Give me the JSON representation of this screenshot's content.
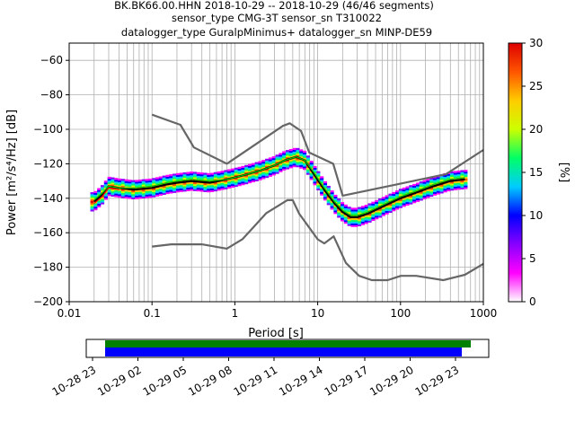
{
  "chart_data": {
    "type": "heatmap",
    "title_lines": [
      "BK.BK66.00.HHN   2018-10-29 -- 2018-10-29  (46/46 segments)",
      "sensor_type CMG-3T sensor_sn T310022",
      "datalogger_type GuralpMinimus+ datalogger_sn MINP-DE59"
    ],
    "xlabel": "Period [s]",
    "ylabel": "Power [m²/s⁴/Hz] [dB]",
    "xscale": "log",
    "xlim": [
      0.01,
      1000
    ],
    "ylim": [
      -200,
      -50
    ],
    "grid": true,
    "x_ticks": [
      {
        "value": 0.01,
        "label": "0.01"
      },
      {
        "value": 0.1,
        "label": "0.1"
      },
      {
        "value": 1,
        "label": "1"
      },
      {
        "value": 10,
        "label": "10"
      },
      {
        "value": 100,
        "label": "100"
      },
      {
        "value": 1000,
        "label": "1000"
      }
    ],
    "y_ticks": [
      -60,
      -80,
      -100,
      -120,
      -140,
      -160,
      -180,
      -200
    ],
    "colorbar": {
      "label": "[%]",
      "range": [
        0,
        30
      ],
      "ticks": [
        0,
        5,
        10,
        15,
        20,
        25,
        30
      ],
      "colors": [
        "#ffffff",
        "#ff00ff",
        "#8800ff",
        "#0000ff",
        "#00ccff",
        "#00ff66",
        "#ccff00",
        "#ffcc00",
        "#ff5500",
        "#dd0000"
      ]
    },
    "series": [
      {
        "role": "new-high-noise-model",
        "color": "#666666",
        "x": [
          0.1,
          0.22,
          0.32,
          0.8,
          3.8,
          4.6,
          6.3,
          7.9,
          15.4,
          20,
          354.8,
          1000
        ],
        "y": [
          -91.5,
          -97.4,
          -110.5,
          -120,
          -98,
          -96.5,
          -101,
          -113.5,
          -120,
          -138.5,
          -126,
          -112
        ]
      },
      {
        "role": "new-low-noise-model",
        "color": "#666666",
        "x": [
          0.1,
          0.17,
          0.4,
          0.8,
          1.24,
          2.4,
          4.3,
          5,
          6,
          10,
          12,
          15.6,
          21.9,
          31.6,
          45,
          70,
          101,
          154,
          328,
          600,
          1000
        ],
        "y": [
          -168,
          -166.7,
          -166.7,
          -169.2,
          -163.7,
          -148.6,
          -141.1,
          -141.1,
          -149,
          -163.8,
          -166.2,
          -162.1,
          -177.5,
          -185,
          -187.5,
          -187.5,
          -185,
          -185,
          -187.5,
          -184.4,
          -178
        ]
      },
      {
        "role": "mode",
        "color": "#000000",
        "x": [
          0.02,
          0.025,
          0.03,
          0.04,
          0.06,
          0.1,
          0.15,
          0.2,
          0.3,
          0.5,
          0.8,
          1.2,
          2,
          3,
          4,
          5.5,
          7,
          9,
          12,
          16,
          20,
          25,
          30,
          40,
          60,
          100,
          150,
          250,
          400,
          600
        ],
        "y": [
          -142,
          -138,
          -133,
          -134,
          -135,
          -134,
          -132,
          -131,
          -130,
          -131,
          -129,
          -127,
          -124,
          -121,
          -118,
          -116,
          -118,
          -126,
          -135,
          -143,
          -148,
          -151,
          -151,
          -149,
          -145,
          -140,
          -137,
          -133,
          -130,
          -129
        ]
      },
      {
        "role": "mean",
        "color": "#00cc00",
        "x": [
          0.02,
          0.025,
          0.03,
          0.04,
          0.06,
          0.1,
          0.15,
          0.2,
          0.3,
          0.5,
          0.8,
          1.2,
          2,
          3,
          4,
          5.5,
          7,
          9,
          12,
          16,
          20,
          25,
          30,
          40,
          60,
          100,
          150,
          250,
          400,
          600
        ],
        "y": [
          -141,
          -137,
          -133,
          -134,
          -134,
          -133,
          -131,
          -130,
          -129,
          -130,
          -129,
          -127,
          -124,
          -121,
          -118,
          -116,
          -118,
          -125,
          -134,
          -142,
          -147,
          -150,
          -150,
          -148,
          -144,
          -139,
          -136,
          -132,
          -129,
          -128
        ]
      },
      {
        "role": "median",
        "color": "#ff0000",
        "x": [
          0.02,
          0.025,
          0.03,
          0.04
        ],
        "y": [
          -143,
          -139,
          -134,
          -135
        ]
      }
    ],
    "spread": {
      "x_range": [
        0.018,
        640
      ],
      "half_width_db": 5
    },
    "timeline": {
      "tick_labels": [
        "10-28 23",
        "10-29 02",
        "10-29 05",
        "10-29 08",
        "10-29 11",
        "10-29 14",
        "10-29 17",
        "10-29 20",
        "10-29 23"
      ],
      "green_bar": {
        "start": "10-29 00:00",
        "end": "10-30 00:00",
        "color": "#008000"
      },
      "blue_bar": {
        "start": "10-29 00:00",
        "end": "10-29 23:45",
        "color": "#0000ff"
      }
    }
  }
}
